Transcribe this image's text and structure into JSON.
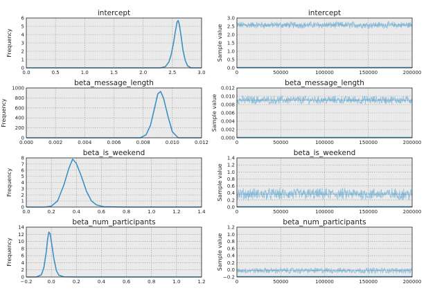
{
  "figure": {
    "background": "#ffffff",
    "plot_background": "#eaeaea",
    "grid_color": "#9a9a9a",
    "density_color": "#3b8fc4",
    "trace_color": "#8dbfdb",
    "trace_center_color": "#4a89b8"
  },
  "chart_data": [
    {
      "type": "line",
      "title": "intercept",
      "xlabel": "",
      "ylabel": "Frequency",
      "xlim": [
        0.0,
        3.0
      ],
      "ylim": [
        0,
        6
      ],
      "xticks": [
        "0.0",
        "0.5",
        "1.0",
        "1.5",
        "2.0",
        "2.5",
        "3.0"
      ],
      "yticks": [
        "0",
        "1",
        "2",
        "3",
        "4",
        "5",
        "6"
      ],
      "grid": true,
      "series": [
        {
          "x": [
            2.3,
            2.38,
            2.44,
            2.48,
            2.52,
            2.55,
            2.58,
            2.6,
            2.62,
            2.65,
            2.68,
            2.72,
            2.76,
            2.82
          ],
          "y": [
            0.0,
            0.15,
            0.7,
            1.6,
            3.0,
            4.3,
            5.5,
            5.7,
            5.2,
            3.8,
            2.2,
            0.9,
            0.25,
            0.0
          ]
        }
      ]
    },
    {
      "type": "line",
      "title": "intercept",
      "xlabel": "",
      "ylabel": "Sample value",
      "xlim": [
        0,
        200000
      ],
      "ylim": [
        0.0,
        3.0
      ],
      "xticks": [
        "0",
        "50000",
        "100000",
        "150000",
        "200000"
      ],
      "yticks": [
        "0.0",
        "0.5",
        "1.0",
        "1.5",
        "2.0",
        "2.5",
        "3.0"
      ],
      "grid": true,
      "series": [
        {
          "x": [
            0,
            200000
          ],
          "y": [
            2.58,
            2.58
          ],
          "band": [
            2.35,
            2.82
          ]
        }
      ]
    },
    {
      "type": "line",
      "title": "beta_message_length",
      "xlabel": "",
      "ylabel": "Frequency",
      "xlim": [
        0.0,
        0.012
      ],
      "ylim": [
        0,
        1000
      ],
      "xticks": [
        "0.000",
        "0.002",
        "0.004",
        "0.006",
        "0.008",
        "0.010",
        "0.012"
      ],
      "yticks": [
        "0",
        "200",
        "400",
        "600",
        "800",
        "1000"
      ],
      "grid": true,
      "series": [
        {
          "x": [
            0.0078,
            0.0082,
            0.0085,
            0.0088,
            0.009,
            0.0092,
            0.0094,
            0.0097,
            0.01,
            0.0104
          ],
          "y": [
            0,
            60,
            250,
            620,
            880,
            930,
            790,
            430,
            120,
            0
          ]
        }
      ]
    },
    {
      "type": "line",
      "title": "beta_message_length",
      "xlabel": "",
      "ylabel": "Sample value",
      "xlim": [
        0,
        200000
      ],
      "ylim": [
        0.0,
        0.012
      ],
      "xticks": [
        "0",
        "50000",
        "100000",
        "150000",
        "200000"
      ],
      "yticks": [
        "0.000",
        "0.002",
        "0.004",
        "0.006",
        "0.008",
        "0.010",
        "0.012"
      ],
      "grid": true,
      "series": [
        {
          "x": [
            0,
            200000
          ],
          "y": [
            0.0091,
            0.0091
          ],
          "band": [
            0.008,
            0.0103
          ]
        }
      ]
    },
    {
      "type": "line",
      "title": "beta_is_weekend",
      "xlabel": "",
      "ylabel": "Frequency",
      "xlim": [
        0.0,
        1.4
      ],
      "ylim": [
        0,
        8
      ],
      "xticks": [
        "0.0",
        "0.2",
        "0.4",
        "0.6",
        "0.8",
        "1.0",
        "1.2",
        "1.4"
      ],
      "yticks": [
        "0",
        "1",
        "2",
        "3",
        "4",
        "5",
        "6",
        "7",
        "8"
      ],
      "grid": true,
      "series": [
        {
          "x": [
            0.15,
            0.2,
            0.25,
            0.3,
            0.34,
            0.37,
            0.4,
            0.44,
            0.48,
            0.52,
            0.56,
            0.62,
            0.8,
            1.0,
            1.22
          ],
          "y": [
            0.0,
            0.15,
            1.0,
            3.6,
            6.3,
            7.8,
            7.1,
            5.0,
            2.6,
            1.0,
            0.35,
            0.05,
            0.0,
            0.0,
            0.0
          ]
        }
      ]
    },
    {
      "type": "line",
      "title": "beta_is_weekend",
      "xlabel": "",
      "ylabel": "Sample value",
      "xlim": [
        0,
        200000
      ],
      "ylim": [
        0.0,
        1.4
      ],
      "xticks": [
        "0",
        "50000",
        "100000",
        "150000",
        "200000"
      ],
      "yticks": [
        "0.0",
        "0.2",
        "0.4",
        "0.6",
        "0.8",
        "1.0",
        "1.2",
        "1.4"
      ],
      "grid": true,
      "series": [
        {
          "x": [
            0,
            200000
          ],
          "y": [
            0.37,
            0.37
          ],
          "band": [
            0.18,
            0.56
          ]
        }
      ]
    },
    {
      "type": "line",
      "title": "beta_num_participants",
      "xlabel": "",
      "ylabel": "Frequency",
      "xlim": [
        -0.2,
        1.2
      ],
      "ylim": [
        0,
        14
      ],
      "xticks": [
        "−0.2",
        "0.0",
        "0.2",
        "0.4",
        "0.6",
        "0.8",
        "1.0",
        "1.2"
      ],
      "yticks": [
        "0",
        "2",
        "4",
        "6",
        "8",
        "10",
        "12",
        "14"
      ],
      "grid": true,
      "series": [
        {
          "x": [
            -0.12,
            -0.08,
            -0.06,
            -0.04,
            -0.03,
            -0.02,
            -0.01,
            0.0,
            0.02,
            0.04,
            0.06,
            0.1,
            0.2,
            0.6,
            1.05
          ],
          "y": [
            0.0,
            0.6,
            2.6,
            7.2,
            10.6,
            12.6,
            12.2,
            10.0,
            5.2,
            1.8,
            0.5,
            0.05,
            0.0,
            0.0,
            0.0
          ]
        }
      ]
    },
    {
      "type": "line",
      "title": "beta_num_participants",
      "xlabel": "",
      "ylabel": "Sample value",
      "xlim": [
        0,
        200000
      ],
      "ylim": [
        -0.2,
        1.2
      ],
      "xticks": [
        "0",
        "50000",
        "100000",
        "150000",
        "200000"
      ],
      "yticks": [
        "−0.2",
        "0.0",
        "0.2",
        "0.4",
        "0.6",
        "0.8",
        "1.0",
        "1.2"
      ],
      "grid": true,
      "series": [
        {
          "x": [
            0,
            200000
          ],
          "y": [
            -0.02,
            -0.02
          ],
          "band": [
            -0.11,
            0.07
          ]
        }
      ]
    }
  ]
}
